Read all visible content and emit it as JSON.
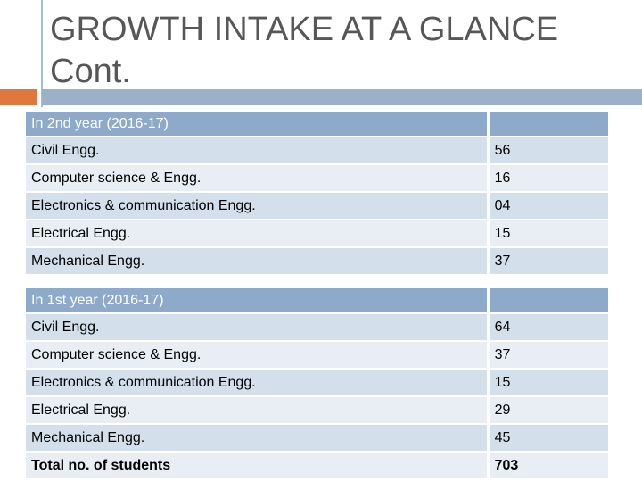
{
  "slide": {
    "title_line1": "GROWTH INTAKE AT A GLANCE",
    "title_line2": "Cont.",
    "accent_color": "#e0773c",
    "header_color": "#8daacb"
  },
  "table_second_year": {
    "header": "In 2nd year (2016-17)",
    "header_value": "",
    "rows": [
      {
        "branch": "Civil Engg.",
        "count": "56"
      },
      {
        "branch": "Computer science & Engg.",
        "count": "16"
      },
      {
        "branch": "Electronics  & communication Engg.",
        "count": "04"
      },
      {
        "branch": "Electrical Engg.",
        "count": "15"
      },
      {
        "branch": "Mechanical Engg.",
        "count": "37"
      }
    ]
  },
  "table_first_year": {
    "header": "In 1st year (2016-17)",
    "header_value": "",
    "rows": [
      {
        "branch": "Civil Engg.",
        "count": "64"
      },
      {
        "branch": "Computer science & Engg.",
        "count": "37"
      },
      {
        "branch": "Electronics  & communication Engg.",
        "count": "15"
      },
      {
        "branch": "Electrical Engg.",
        "count": "29"
      },
      {
        "branch": "Mechanical Engg.",
        "count": "45"
      }
    ],
    "total_label": "Total no. of students",
    "total_value": "703"
  }
}
